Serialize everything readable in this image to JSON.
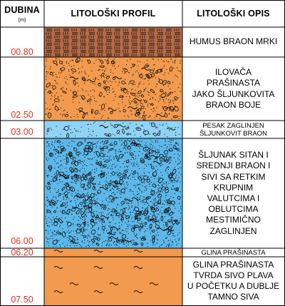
{
  "header": {
    "depth_title": "DUBINA",
    "depth_unit": "(m)",
    "profile_title": "LITOLOŠKI PROFIL",
    "description_title": "LITOLOŠKI OPIS"
  },
  "colors": {
    "humus": "#b86a45",
    "clay_orange": "#f29a4d",
    "gravel_blue": "#5db8ea",
    "gravel_light_blue": "#8fd3f5",
    "depth_text": "#e0301e",
    "grid": "#000000"
  },
  "layers": [
    {
      "bottom_depth": "00.80",
      "top_m": 0.0,
      "bottom_m": 0.8,
      "pattern": "humus",
      "description": "HUMUS BRAON MRKI"
    },
    {
      "bottom_depth": "02.50",
      "top_m": 0.8,
      "bottom_m": 2.5,
      "pattern": "silty-gravelly-clay",
      "description": "ILOVAČA\nPRAŠINASTA\nJAKO ŠLJUNKOVITA\nBRAON BOJE"
    },
    {
      "bottom_depth": "03.00",
      "top_m": 2.5,
      "bottom_m": 3.0,
      "pattern": "clayey-sand-gravel",
      "description": "PESAK ZAGLINJEN\nŠLJUNKOVIT BRAON"
    },
    {
      "bottom_depth": "06.00",
      "top_m": 3.0,
      "bottom_m": 6.0,
      "pattern": "sandy-gravel",
      "description": "ŠLJUNAK SITAN I\nSREDNJI BRAON I\nSIVI SA RETKIM\nKRUPNIM\nVALUTCIMA I\nOBLUTCIMA\nMESTIMIČNO\nZAGLINJEN"
    },
    {
      "bottom_depth": "06.20",
      "top_m": 6.0,
      "bottom_m": 6.2,
      "pattern": "silty-clay",
      "description": "GLINA PRAŠINASTA"
    },
    {
      "bottom_depth": "07.50",
      "top_m": 6.2,
      "bottom_m": 7.5,
      "pattern": "silty-clay",
      "description": "GLINA PRAŠINASTA\nTVRDA SIVO PLAVA\nU POČETKU A DUBLJE\nTAMNO SIVA"
    }
  ]
}
